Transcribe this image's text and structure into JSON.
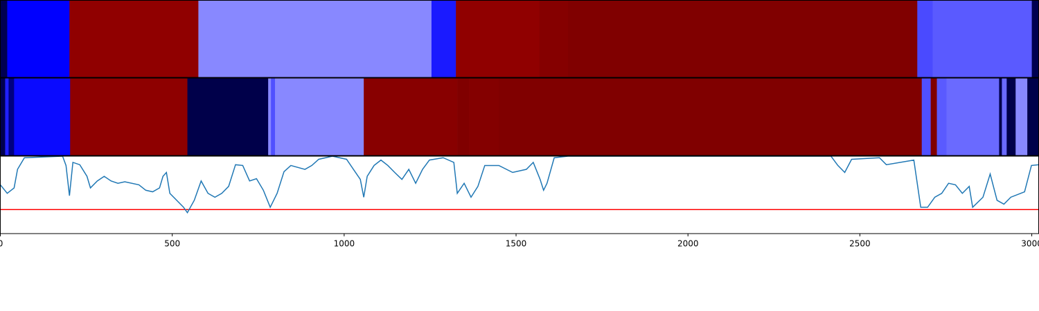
{
  "chart_data": [
    {
      "type": "strip",
      "bins": [
        0,
        20,
        201,
        576,
        1254,
        1325,
        1568,
        1651,
        2667,
        2712,
        3000,
        3020
      ],
      "colors": [
        "#000050",
        "#0000ff",
        "#900000",
        "#8888ff",
        "#1a1aff",
        "#900000",
        "#850000",
        "#800000",
        "#4a4aff",
        "#5a5aff",
        "#000050"
      ],
      "xlim": [
        0,
        3020
      ]
    },
    {
      "type": "strip",
      "bins": [
        0,
        14,
        24,
        40,
        203,
        544,
        779,
        787,
        799,
        1057,
        1329,
        1363,
        1450,
        2680,
        2706,
        2724,
        2752,
        2905,
        2913,
        2927,
        2953,
        2987,
        3020
      ],
      "colors": [
        "#000050",
        "#2020ff",
        "#000080",
        "#0a0aff",
        "#8e0000",
        "#00004a",
        "#8888ff",
        "#5050ff",
        "#8888ff",
        "#880000",
        "#800000",
        "#840000",
        "#800000",
        "#5050ff",
        "#800000",
        "#5a5aff",
        "#6a6aff",
        "#00004a",
        "#6a6aff",
        "#00004a",
        "#8888ff",
        "#00004a"
      ],
      "xlim": [
        0,
        3020
      ]
    },
    {
      "type": "line",
      "x": [
        0,
        20,
        40,
        50,
        70,
        181,
        191,
        201,
        211,
        231,
        252,
        262,
        282,
        302,
        322,
        342,
        362,
        403,
        423,
        443,
        463,
        473,
        483,
        493,
        513,
        533,
        544,
        564,
        584,
        604,
        624,
        644,
        664,
        684,
        705,
        725,
        745,
        765,
        785,
        805,
        825,
        845,
        886,
        906,
        926,
        966,
        1007,
        1027,
        1047,
        1057,
        1067,
        1087,
        1107,
        1127,
        1147,
        1168,
        1188,
        1208,
        1228,
        1248,
        1288,
        1319,
        1329,
        1349,
        1369,
        1389,
        1409,
        1450,
        1490,
        1530,
        1550,
        1570,
        1580,
        1590,
        1611,
        1651,
        2416,
        2436,
        2456,
        2476,
        2557,
        2577,
        2657,
        2677,
        2697,
        2718,
        2738,
        2758,
        2778,
        2798,
        2818,
        2828,
        2858,
        2879,
        2899,
        2919,
        2939,
        2979,
        2999,
        3020
      ],
      "series": [
        {
          "color": "#1f77b4",
          "values": [
            0.63,
            0.52,
            0.59,
            0.83,
            0.98,
            1,
            0.88,
            0.49,
            0.92,
            0.89,
            0.74,
            0.59,
            0.68,
            0.74,
            0.68,
            0.65,
            0.67,
            0.63,
            0.56,
            0.54,
            0.59,
            0.74,
            0.79,
            0.52,
            0.43,
            0.34,
            0.27,
            0.43,
            0.68,
            0.52,
            0.47,
            0.52,
            0.61,
            0.89,
            0.88,
            0.68,
            0.71,
            0.56,
            0.34,
            0.52,
            0.8,
            0.88,
            0.83,
            0.88,
            0.96,
            1,
            0.96,
            0.83,
            0.7,
            0.47,
            0.74,
            0.88,
            0.95,
            0.88,
            0.79,
            0.7,
            0.83,
            0.65,
            0.83,
            0.95,
            0.98,
            0.92,
            0.52,
            0.65,
            0.47,
            0.61,
            0.88,
            0.88,
            0.79,
            0.83,
            0.92,
            0.7,
            0.56,
            0.65,
            0.98,
            1,
            1,
            0.88,
            0.79,
            0.96,
            0.98,
            0.89,
            0.95,
            0.34,
            0.34,
            0.47,
            0.52,
            0.65,
            0.63,
            0.52,
            0.61,
            0.34,
            0.47,
            0.77,
            0.43,
            0.38,
            0.47,
            0.54,
            0.88,
            0.89
          ]
        }
      ],
      "hline": {
        "value": 0.31,
        "color": "#ff0000"
      },
      "xlim": [
        0,
        3020
      ],
      "ylim": [
        0,
        1
      ],
      "xticks": [
        0,
        500,
        1000,
        1500,
        2000,
        2500,
        3000
      ]
    }
  ]
}
